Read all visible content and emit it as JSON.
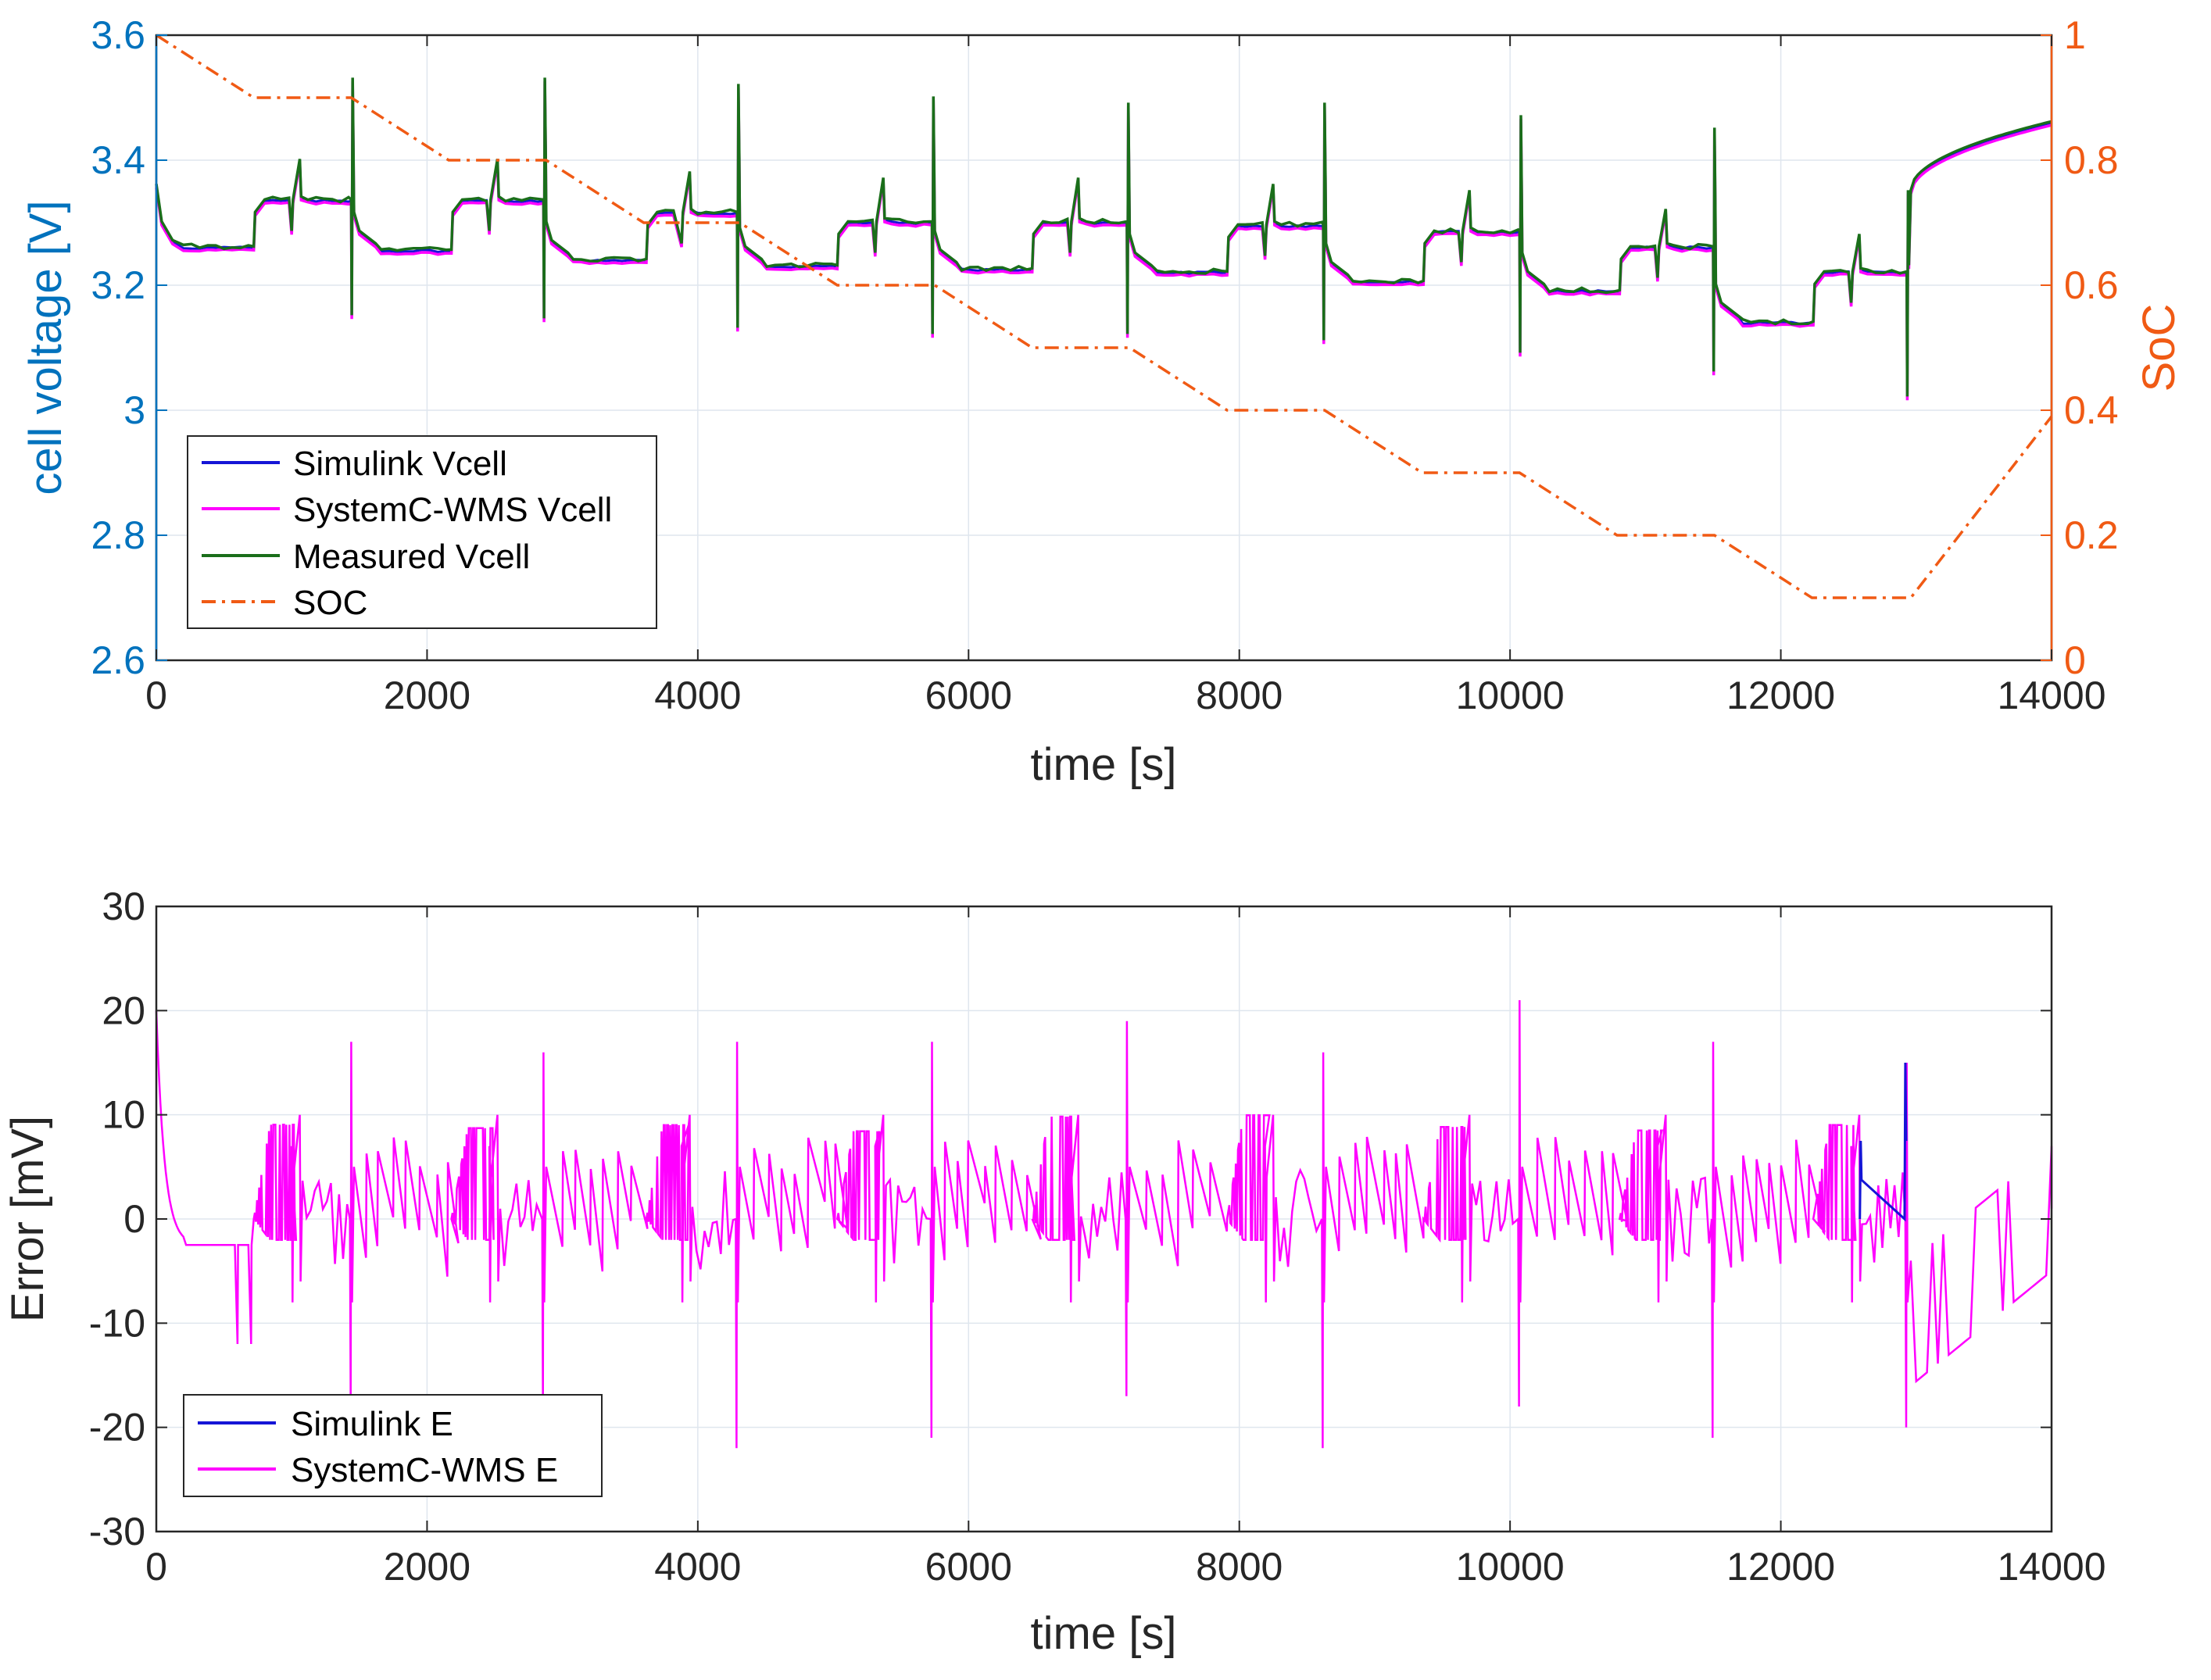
{
  "colors": {
    "simulink": "#1515d6",
    "systemc": "#ff00ff",
    "measured": "#1a6e1a",
    "soc": "#f05a14",
    "left_axis": "#0072bd",
    "right_axis": "#f05a14",
    "grid": "#dfe6ee",
    "axis": "#262626"
  },
  "chart_data": [
    {
      "type": "line",
      "id": "voltage-soc",
      "xlabel": "time [s]",
      "ylabel": "cell voltage [V]",
      "y2label": "SoC",
      "xlim": [
        0,
        14000
      ],
      "ylim": [
        2.6,
        3.6
      ],
      "y2lim": [
        0,
        1
      ],
      "xticks": [
        0,
        2000,
        4000,
        6000,
        8000,
        10000,
        12000,
        14000
      ],
      "xtick_labels": [
        "0",
        "2000",
        "4000",
        "6000",
        "8000",
        "10000",
        "12000",
        "14000"
      ],
      "yticks": [
        2.6,
        2.8,
        3.0,
        3.2,
        3.4,
        3.6
      ],
      "ytick_labels": [
        "2.6",
        "2.8",
        "3",
        "3.2",
        "3.4",
        "3.6"
      ],
      "y2ticks": [
        0,
        0.2,
        0.4,
        0.6,
        0.8,
        1.0
      ],
      "y2tick_labels": [
        "0",
        "0.2",
        "0.4",
        "0.6",
        "0.8",
        "1"
      ],
      "grid": true,
      "legend_position": "bottom-left",
      "legend": [
        "Simulink Vcell",
        "SystemC-WMS Vcell",
        "Measured Vcell",
        "SOC"
      ],
      "pulse_cycles": [
        {
          "rest_start": 0,
          "rest_v": 3.26,
          "charge_start": 720,
          "charge_v": 3.335,
          "dip_t": 1000,
          "spike_t": 1060,
          "spike_v": 3.4,
          "step_t": 1440,
          "low_v": 3.15,
          "high_v": 3.53
        },
        {
          "rest_start": 1460,
          "rest_v": 3.255,
          "charge_start": 2180,
          "charge_v": 3.335,
          "dip_t": 2460,
          "spike_t": 2520,
          "spike_v": 3.4,
          "step_t": 2860,
          "low_v": 3.145,
          "high_v": 3.53
        },
        {
          "rest_start": 2880,
          "rest_v": 3.24,
          "charge_start": 3620,
          "charge_v": 3.315,
          "dip_t": 3880,
          "spike_t": 3940,
          "spike_v": 3.38,
          "step_t": 4290,
          "low_v": 3.13,
          "high_v": 3.52
        },
        {
          "rest_start": 4310,
          "rest_v": 3.23,
          "charge_start": 5030,
          "charge_v": 3.3,
          "dip_t": 5310,
          "spike_t": 5370,
          "spike_v": 3.37,
          "step_t": 5730,
          "low_v": 3.12,
          "high_v": 3.5
        },
        {
          "rest_start": 5750,
          "rest_v": 3.225,
          "charge_start": 6470,
          "charge_v": 3.3,
          "dip_t": 6750,
          "spike_t": 6810,
          "spike_v": 3.37,
          "step_t": 7170,
          "low_v": 3.12,
          "high_v": 3.49
        },
        {
          "rest_start": 7190,
          "rest_v": 3.22,
          "charge_start": 7910,
          "charge_v": 3.295,
          "dip_t": 8190,
          "spike_t": 8250,
          "spike_v": 3.36,
          "step_t": 8620,
          "low_v": 3.11,
          "high_v": 3.49
        },
        {
          "rest_start": 8640,
          "rest_v": 3.205,
          "charge_start": 9360,
          "charge_v": 3.285,
          "dip_t": 9640,
          "spike_t": 9700,
          "spike_v": 3.35,
          "step_t": 10070,
          "low_v": 3.09,
          "high_v": 3.47
        },
        {
          "rest_start": 10090,
          "rest_v": 3.19,
          "charge_start": 10810,
          "charge_v": 3.26,
          "dip_t": 11090,
          "spike_t": 11150,
          "spike_v": 3.32,
          "step_t": 11500,
          "low_v": 3.06,
          "high_v": 3.45
        },
        {
          "rest_start": 11520,
          "rest_v": 3.14,
          "charge_start": 12240,
          "charge_v": 3.22,
          "dip_t": 12520,
          "spike_t": 12580,
          "spike_v": 3.28,
          "step_t": 12930,
          "low_v": 3.02,
          "high_v": 3.35
        }
      ],
      "final_charge": {
        "t_start": 12960,
        "v_start": 3.35,
        "t_end": 14000,
        "v_end": 3.46
      },
      "soc_series": {
        "x": [
          0,
          720,
          1440,
          2160,
          2880,
          3600,
          4310,
          5030,
          5750,
          6470,
          7190,
          7910,
          8630,
          9350,
          10070,
          10790,
          11510,
          12230,
          12960,
          14000
        ],
        "y": [
          1.0,
          0.9,
          0.9,
          0.8,
          0.8,
          0.7,
          0.7,
          0.6,
          0.6,
          0.5,
          0.5,
          0.4,
          0.4,
          0.3,
          0.3,
          0.2,
          0.2,
          0.1,
          0.1,
          0.39
        ]
      }
    },
    {
      "type": "line",
      "id": "error",
      "xlabel": "time [s]",
      "ylabel": "Error [mV]",
      "xlim": [
        0,
        14000
      ],
      "ylim": [
        -30,
        30
      ],
      "xticks": [
        0,
        2000,
        4000,
        6000,
        8000,
        10000,
        12000,
        14000
      ],
      "xtick_labels": [
        "0",
        "2000",
        "4000",
        "6000",
        "8000",
        "10000",
        "12000",
        "14000"
      ],
      "yticks": [
        -30,
        -20,
        -10,
        0,
        10,
        20,
        30
      ],
      "ytick_labels": [
        "-30",
        "-20",
        "-10",
        "0",
        "10",
        "20",
        "30"
      ],
      "grid": true,
      "legend_position": "bottom-left",
      "legend": [
        "Simulink E",
        "SystemC-WMS E"
      ],
      "error_events": [
        {
          "t": 0,
          "peak": 20
        },
        {
          "t": 1440,
          "peak": 17,
          "neg": -18
        },
        {
          "t": 2860,
          "peak": 16,
          "neg": -18
        },
        {
          "t": 4290,
          "peak": 17,
          "neg": -22
        },
        {
          "t": 5730,
          "peak": 17,
          "neg": -21
        },
        {
          "t": 7170,
          "peak": 19,
          "neg": -17
        },
        {
          "t": 8620,
          "peak": 16,
          "neg": -22
        },
        {
          "t": 10070,
          "peak": 21,
          "neg": -18
        },
        {
          "t": 11500,
          "peak": 17,
          "neg": -21
        },
        {
          "t": 12930,
          "peak": 15,
          "neg": -20
        }
      ],
      "simulink_peaks": [
        {
          "t": 12590,
          "v": 7.5
        },
        {
          "t": 12920,
          "v": 15
        }
      ]
    }
  ]
}
